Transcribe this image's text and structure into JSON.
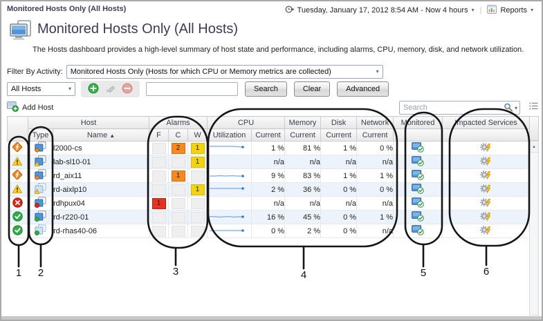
{
  "header": {
    "breadcrumb": "Monitored Hosts Only (All Hosts)",
    "time_range": "Tuesday, January 17, 2012 8:54 AM - Now 4 hours",
    "reports_label": "Reports",
    "title": "Monitored Hosts Only (All Hosts)",
    "description": "The Hosts dashboard provides a high-level summary of host state and performance, including alarms, CPU, memory, disk, and network utilization."
  },
  "filter_bar": {
    "label": "Filter By Activity:",
    "selected": "Monitored Hosts Only (Hosts for which CPU or Memory metrics are collected)"
  },
  "search_bar": {
    "scope_selected": "All Hosts",
    "query_value": "",
    "search_label": "Search",
    "clear_label": "Clear",
    "advanced_label": "Advanced"
  },
  "toolbar": {
    "add_host_label": "Add Host",
    "search_placeholder": "Search"
  },
  "icons": {
    "title": "hosts-page-icon",
    "time_range": "clock-arrow-icon",
    "reports": "report-chart-icon",
    "add": "add-plus-icon",
    "edit": "edit-pencil-icon",
    "remove": "remove-minus-icon",
    "add_host": "host-add-icon",
    "search": "magnifier-icon",
    "column_chooser": "list-menu-icon",
    "monitored": "host-monitored-icon",
    "impacted": "service-impact-icon"
  },
  "table": {
    "group_headers": {
      "host": "Host",
      "alarms": "Alarms",
      "cpu": "CPU",
      "memory": "Memory",
      "disk": "Disk",
      "network": "Network",
      "monitored": "Monitored",
      "impacted_services": "Impacted Services"
    },
    "column_headers": {
      "type": "Type",
      "name": "Name",
      "sort_indicator": "▲",
      "fatal": "F",
      "critical": "C",
      "warning": "W",
      "utilization": "Utilization",
      "current": "Current"
    },
    "rows": [
      {
        "name": "l2000-cs",
        "status": "critical",
        "virtual": false,
        "badge": "critical",
        "alarms": {
          "f": "",
          "c": "2",
          "w": "1"
        },
        "spark": [
          6,
          6,
          6,
          6,
          6,
          6.5,
          7
        ],
        "values": {
          "cpu": "1 %",
          "mem": "81 %",
          "disk": "1 %",
          "net": "0 %"
        }
      },
      {
        "name": "lab-sl10-01",
        "status": "warning",
        "virtual": false,
        "badge": "warning",
        "alarms": {
          "f": "",
          "c": "",
          "w": "1"
        },
        "spark": null,
        "values": {
          "cpu": "n/a",
          "mem": "n/a",
          "disk": "n/a",
          "net": "n/a"
        }
      },
      {
        "name": "rd_aix11",
        "status": "critical",
        "virtual": false,
        "badge": "critical",
        "alarms": {
          "f": "",
          "c": "1",
          "w": ""
        },
        "spark": [
          9,
          9,
          8.5,
          9,
          8.5,
          9,
          9
        ],
        "values": {
          "cpu": "9 %",
          "mem": "83 %",
          "disk": "1 %",
          "net": "1 %"
        }
      },
      {
        "name": "rd-aixlp10",
        "status": "warning",
        "virtual": true,
        "badge": "warning",
        "alarms": {
          "f": "",
          "c": "",
          "w": "1"
        },
        "spark": [
          7,
          7,
          7,
          7,
          7,
          7,
          7
        ],
        "values": {
          "cpu": "2 %",
          "mem": "36 %",
          "disk": "0 %",
          "net": "0 %"
        }
      },
      {
        "name": "rdhpux04",
        "status": "fatal",
        "virtual": false,
        "badge": "fatal",
        "alarms": {
          "f": "1",
          "c": "",
          "w": ""
        },
        "spark": null,
        "values": {
          "cpu": "n/a",
          "mem": "n/a",
          "disk": "n/a",
          "net": "n/a"
        }
      },
      {
        "name": "rd-r220-01",
        "status": "normal",
        "virtual": false,
        "badge": "normal",
        "alarms": {
          "f": "",
          "c": "",
          "w": ""
        },
        "spark": [
          8,
          7.5,
          8.5,
          8,
          7.5,
          8.5,
          8,
          8
        ],
        "values": {
          "cpu": "16 %",
          "mem": "45 %",
          "disk": "0 %",
          "net": "1 %"
        }
      },
      {
        "name": "rd-rhas40-06",
        "status": "normal",
        "virtual": true,
        "badge": "normal",
        "alarms": {
          "f": "",
          "c": "",
          "w": ""
        },
        "spark": [
          8,
          8,
          8,
          8,
          8,
          8,
          8
        ],
        "values": {
          "cpu": "0 %",
          "mem": "2 %",
          "disk": "0 %",
          "net": "n/a"
        }
      }
    ]
  },
  "callouts": {
    "labels": [
      "1",
      "2",
      "3",
      "4",
      "5",
      "6"
    ]
  },
  "colors": {
    "fatal": "#DE2414",
    "critical": "#F6891F",
    "warning": "#FFD21D",
    "normal": "#2EAD42",
    "alarm_empty": "#EFEFEF",
    "sparkline": "#76ACDF",
    "spark_dot": "#3676BC",
    "row_alt": "#EDF3FB"
  }
}
